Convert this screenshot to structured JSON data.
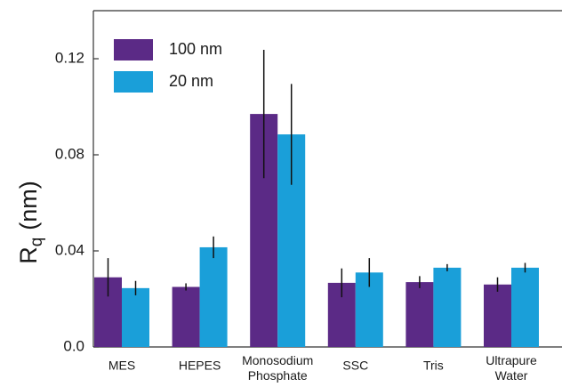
{
  "chart_data": {
    "type": "bar",
    "ylabel": "R",
    "ylabel_sub": "q",
    "ylabel_unit": "(nm)",
    "categories": [
      "MES",
      "HEPES",
      "Monosodium Phosphate",
      "SSC",
      "Tris",
      "Ultrapure Water"
    ],
    "series": [
      {
        "name": "100 nm",
        "color": "#5b2a86",
        "values": [
          0.029,
          0.025,
          0.097,
          0.0267,
          0.027,
          0.026
        ],
        "errors": [
          0.008,
          0.0015,
          0.0267,
          0.006,
          0.0025,
          0.003
        ]
      },
      {
        "name": "20 nm",
        "color": "#1a9fd9",
        "values": [
          0.0245,
          0.0415,
          0.0885,
          0.031,
          0.033,
          0.033
        ],
        "errors": [
          0.003,
          0.0045,
          0.021,
          0.006,
          0.0015,
          0.002
        ]
      }
    ],
    "ylim": [
      0,
      0.14
    ],
    "yticks": [
      {
        "value": 0,
        "label": "0.0"
      },
      0.04,
      0.08,
      0.12
    ],
    "legend": "upper left"
  }
}
